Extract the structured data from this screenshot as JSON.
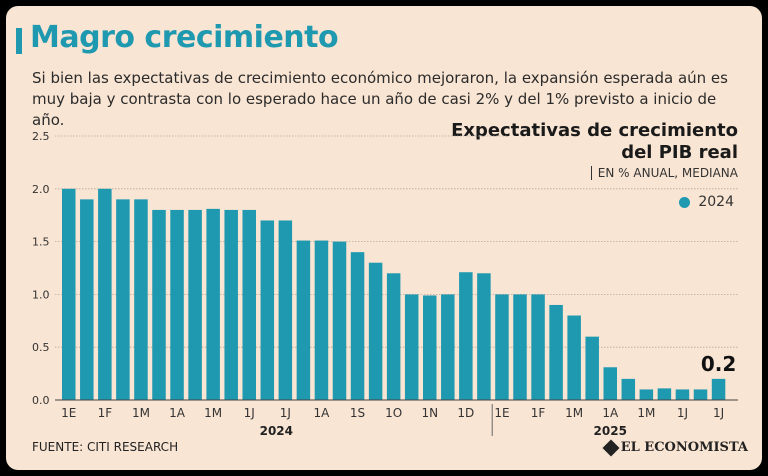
{
  "header": {
    "title": "Magro crecimiento",
    "subtitle": "Si bien las expectativas de crecimiento económico mejoraron, la expansión esperada aún es muy baja y contrasta con lo esperado hace un año de casi 2%  y del 1% previsto a inicio de año."
  },
  "footer": {
    "source": "FUENTE: CITI RESEARCH",
    "brand": "EL ECONOMISTA"
  },
  "colors": {
    "bar": "#1f99b0",
    "grid": "#b7a99b",
    "background": "#f9e5d3"
  },
  "chart_data": {
    "type": "bar",
    "title": "Expectativas de crecimiento del PIB real",
    "units": "EN % ANUAL, MEDIANA",
    "legend": [
      "2024"
    ],
    "legend_position": "top-right",
    "ylim": [
      0,
      2.5
    ],
    "yticks": [
      "0.0",
      "0.5",
      "1.0",
      "1.5",
      "2.0",
      "2.5"
    ],
    "grid": true,
    "values": [
      2.0,
      1.9,
      2.0,
      1.9,
      1.9,
      1.8,
      1.8,
      1.8,
      1.81,
      1.8,
      1.8,
      1.7,
      1.7,
      1.51,
      1.51,
      1.5,
      1.4,
      1.3,
      1.2,
      1.0,
      0.99,
      1.0,
      1.21,
      1.2,
      1.0,
      1.0,
      1.0,
      0.9,
      0.8,
      0.6,
      0.31,
      0.2,
      0.1,
      0.11,
      0.1,
      0.1,
      0.2
    ],
    "xtick_labels": [
      {
        "label": "1E",
        "index": 0
      },
      {
        "label": "1F",
        "index": 2
      },
      {
        "label": "1M",
        "index": 4
      },
      {
        "label": "1A",
        "index": 6
      },
      {
        "label": "1M",
        "index": 8
      },
      {
        "label": "1J",
        "index": 10
      },
      {
        "label": "1J",
        "index": 12
      },
      {
        "label": "1A",
        "index": 14
      },
      {
        "label": "1S",
        "index": 16
      },
      {
        "label": "1O",
        "index": 18
      },
      {
        "label": "1N",
        "index": 20
      },
      {
        "label": "1D",
        "index": 22
      },
      {
        "label": "1E",
        "index": 24
      },
      {
        "label": "1F",
        "index": 26
      },
      {
        "label": "1M",
        "index": 28
      },
      {
        "label": "1A",
        "index": 30
      },
      {
        "label": "1M",
        "index": 32
      },
      {
        "label": "1J",
        "index": 34
      },
      {
        "label": "1J",
        "index": 36
      }
    ],
    "year_groups": [
      {
        "label": "2024",
        "start": 0,
        "end": 23
      },
      {
        "label": "2025",
        "start": 24,
        "end": 36
      }
    ],
    "annotation": {
      "text": "0.2",
      "index": 36
    }
  }
}
